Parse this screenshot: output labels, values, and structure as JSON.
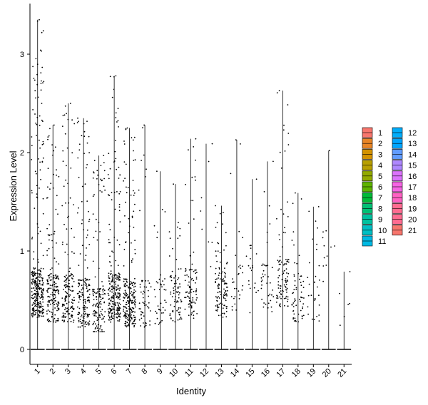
{
  "chart_data": {
    "type": "violin",
    "xlabel": "Identity",
    "ylabel": "Expression Level",
    "categories": [
      "1",
      "2",
      "3",
      "4",
      "5",
      "6",
      "7",
      "8",
      "9",
      "10",
      "11",
      "12",
      "13",
      "14",
      "15",
      "16",
      "17",
      "18",
      "19",
      "20",
      "21"
    ],
    "yticks": [
      0,
      1,
      2,
      3
    ],
    "ylim": [
      -0.15,
      3.55
    ],
    "grid": false,
    "legend_position": "right",
    "legend_columns": [
      [
        "1",
        "2",
        "3",
        "4",
        "5",
        "6",
        "7",
        "8",
        "9",
        "10",
        "11"
      ],
      [
        "12",
        "13",
        "14",
        "15",
        "16",
        "17",
        "18",
        "19",
        "20",
        "21"
      ]
    ],
    "colors": [
      "#F8766D",
      "#E88526",
      "#D39200",
      "#B79F00",
      "#93AA00",
      "#5EB300",
      "#00BA38",
      "#00BF74",
      "#00C19F",
      "#00BFC4",
      "#00B9E3",
      "#00ADFA",
      "#00A5FF",
      "#619CFF",
      "#AE87FF",
      "#DB72FB",
      "#F564E3",
      "#FF61C3",
      "#FF6C91",
      "#FF6C91",
      "#F8766D"
    ],
    "max_values": [
      3.35,
      2.28,
      2.5,
      2.35,
      1.97,
      2.78,
      2.25,
      2.28,
      1.81,
      1.68,
      2.14,
      2.09,
      1.46,
      2.13,
      1.73,
      1.91,
      2.63,
      1.59,
      1.45,
      2.02,
      0.79
    ],
    "point_counts": [
      300,
      180,
      160,
      170,
      140,
      240,
      220,
      55,
      40,
      80,
      90,
      8,
      110,
      30,
      20,
      40,
      100,
      60,
      30,
      12,
      6
    ],
    "median_nonzero": [
      0.55,
      0.5,
      0.5,
      0.45,
      0.35,
      0.5,
      0.45,
      0.45,
      0.45,
      0.5,
      0.55,
      1.3,
      0.55,
      0.6,
      0.8,
      0.6,
      0.65,
      0.5,
      0.5,
      0.8,
      0.4
    ]
  }
}
